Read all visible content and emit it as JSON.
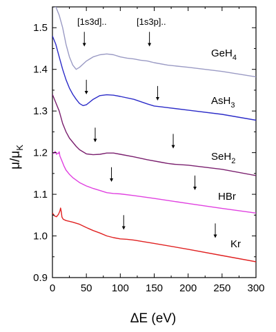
{
  "chart_data": {
    "type": "line",
    "xlabel": "ΔE (eV)",
    "ylabel": "μ/μK",
    "xlim": [
      0,
      300
    ],
    "ylim": [
      0.9,
      1.55
    ],
    "xticks": [
      0,
      50,
      100,
      150,
      200,
      250,
      300
    ],
    "yticks": [
      0.9,
      1.0,
      1.1,
      1.2,
      1.3,
      1.4,
      1.5
    ],
    "grid": false,
    "annotations": [
      "[1s3d]..",
      "[1s3p].."
    ],
    "series": [
      {
        "name": "GeH4",
        "color": "#9a9ac4",
        "label_pos": [
          0,
          0
        ],
        "x": [
          0,
          5,
          10,
          15,
          20,
          25,
          30,
          35,
          40,
          50,
          60,
          70,
          80,
          90,
          100,
          110,
          120,
          130,
          140,
          145,
          150,
          170,
          200,
          250,
          300
        ],
        "y": [
          1.55,
          1.55,
          1.53,
          1.5,
          1.46,
          1.43,
          1.41,
          1.4,
          1.405,
          1.42,
          1.43,
          1.435,
          1.437,
          1.435,
          1.43,
          1.427,
          1.425,
          1.422,
          1.42,
          1.418,
          1.416,
          1.41,
          1.405,
          1.395,
          1.382
        ]
      },
      {
        "name": "AsH3",
        "color": "#2b2bc8",
        "x": [
          0,
          5,
          10,
          15,
          20,
          25,
          30,
          35,
          40,
          45,
          50,
          60,
          70,
          80,
          90,
          100,
          120,
          140,
          150,
          160,
          170,
          200,
          250,
          300
        ],
        "y": [
          1.48,
          1.46,
          1.43,
          1.4,
          1.375,
          1.355,
          1.34,
          1.328,
          1.318,
          1.313,
          1.315,
          1.328,
          1.337,
          1.339,
          1.338,
          1.335,
          1.328,
          1.317,
          1.312,
          1.31,
          1.308,
          1.302,
          1.292,
          1.278
        ]
      },
      {
        "name": "SeH2",
        "color": "#7a1f6e",
        "x": [
          0,
          5,
          10,
          15,
          20,
          25,
          30,
          35,
          40,
          50,
          60,
          70,
          80,
          90,
          100,
          120,
          140,
          160,
          170,
          180,
          200,
          250,
          300
        ],
        "y": [
          1.34,
          1.32,
          1.3,
          1.27,
          1.25,
          1.235,
          1.225,
          1.215,
          1.207,
          1.197,
          1.195,
          1.196,
          1.199,
          1.199,
          1.196,
          1.19,
          1.183,
          1.177,
          1.174,
          1.172,
          1.17,
          1.16,
          1.145
        ]
      },
      {
        "name": "HBr",
        "color": "#e040e0",
        "x": [
          0,
          2,
          4,
          6,
          8,
          9,
          10,
          11,
          12,
          14,
          17,
          20,
          25,
          30,
          40,
          50,
          60,
          70,
          80,
          90,
          100,
          120,
          150,
          200,
          250,
          300
        ],
        "y": [
          1.2,
          1.198,
          1.203,
          1.196,
          1.199,
          1.198,
          1.202,
          1.192,
          1.188,
          1.18,
          1.168,
          1.158,
          1.148,
          1.14,
          1.128,
          1.12,
          1.114,
          1.109,
          1.104,
          1.102,
          1.101,
          1.097,
          1.09,
          1.078,
          1.066,
          1.055
        ]
      },
      {
        "name": "Kr",
        "color": "#e02020",
        "x": [
          0,
          3,
          6,
          9,
          11,
          12,
          13,
          14,
          16,
          20,
          30,
          40,
          50,
          60,
          70,
          80,
          90,
          100,
          110,
          120,
          150,
          200,
          250,
          300
        ],
        "y": [
          1.055,
          1.048,
          1.046,
          1.052,
          1.06,
          1.067,
          1.058,
          1.045,
          1.04,
          1.037,
          1.033,
          1.028,
          1.02,
          1.013,
          1.007,
          1.0,
          0.996,
          0.993,
          0.992,
          0.99,
          0.982,
          0.968,
          0.953,
          0.938
        ]
      }
    ],
    "arrows": [
      {
        "series": "GeH4",
        "x": 47,
        "y_top": 1.49,
        "y_tip": 1.455
      },
      {
        "series": "GeH4",
        "x": 143,
        "y_top": 1.49,
        "y_tip": 1.455
      },
      {
        "series": "AsH3",
        "x": 50,
        "y_top": 1.375,
        "y_tip": 1.34
      },
      {
        "series": "AsH3",
        "x": 155,
        "y_top": 1.36,
        "y_tip": 1.325
      },
      {
        "series": "SeH2",
        "x": 63,
        "y_top": 1.26,
        "y_tip": 1.225
      },
      {
        "series": "SeH2",
        "x": 178,
        "y_top": 1.245,
        "y_tip": 1.21
      },
      {
        "series": "HBr",
        "x": 87,
        "y_top": 1.165,
        "y_tip": 1.13
      },
      {
        "series": "HBr",
        "x": 210,
        "y_top": 1.145,
        "y_tip": 1.11
      },
      {
        "series": "Kr",
        "x": 105,
        "y_top": 1.05,
        "y_tip": 1.015
      },
      {
        "series": "Kr",
        "x": 240,
        "y_top": 1.03,
        "y_tip": 0.995
      }
    ]
  }
}
